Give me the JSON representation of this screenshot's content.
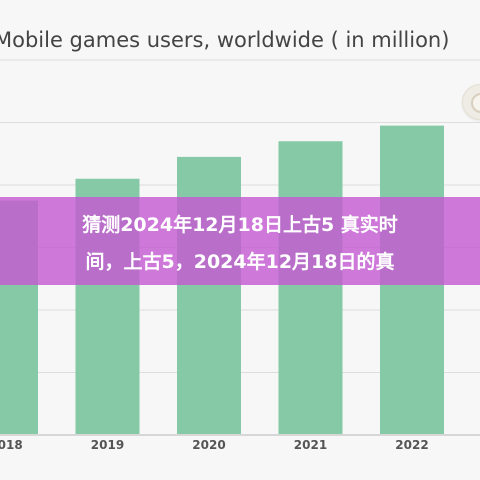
{
  "chart_data": {
    "type": "bar",
    "title": "Mobile games users, worldwide ( in million)",
    "categories": [
      "2018",
      "2019",
      "2020",
      "2021",
      "2022"
    ],
    "values": [
      1500,
      1640,
      1780,
      1880,
      1980
    ],
    "ylim": [
      0,
      2400
    ],
    "grid": true,
    "bar_color": "#86c9a6",
    "axis_color": "#d7d7d7",
    "grid_color": "#dddddd"
  },
  "banner": {
    "line1": "猜测2024年12月18日上古5 真实时",
    "line2": "间，上古5，2024年12月18日的真"
  }
}
